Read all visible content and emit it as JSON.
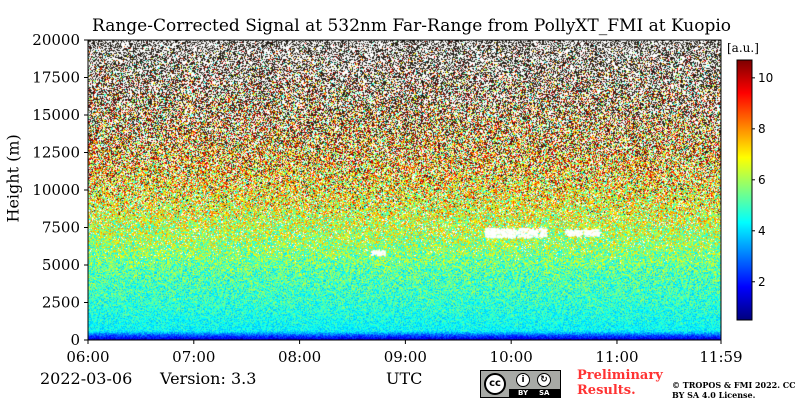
{
  "chart_data": {
    "type": "heatmap",
    "title": "Range-Corrected Signal at 532nm Far-Range from PollyXT_FMI at Kuopio",
    "ylabel": "Height (m)",
    "xlabel": "UTC",
    "x_range": [
      "06:00",
      "11:59"
    ],
    "ylim": [
      0,
      20000
    ],
    "y_ticks": [
      0,
      2500,
      5000,
      7500,
      10000,
      12500,
      15000,
      17500,
      20000
    ],
    "x_ticks": [
      "06:00",
      "07:00",
      "08:00",
      "09:00",
      "10:00",
      "11:00",
      "11:59"
    ],
    "colorbar": {
      "label": "[a.u.]",
      "ticks": [
        2,
        4,
        6,
        8,
        10
      ],
      "range": [
        0.5,
        10.7
      ],
      "colormap": "jet"
    },
    "profile": [
      {
        "height": 0,
        "value": 1.2
      },
      {
        "height": 300,
        "value": 2.6
      },
      {
        "height": 600,
        "value": 4.3
      },
      {
        "height": 2500,
        "value": 4.8
      },
      {
        "height": 4500,
        "value": 5.2
      },
      {
        "height": 6000,
        "value": 5.8
      },
      {
        "height": 8000,
        "value": 6.5
      },
      {
        "height": 12000,
        "value": 7.5
      },
      {
        "height": 20000,
        "value": 8.5
      }
    ],
    "cloud_features": [
      {
        "time_start": "08:40",
        "time_end": "08:48",
        "height_bottom": 5700,
        "height_top": 6000
      },
      {
        "time_start": "09:45",
        "time_end": "10:20",
        "height_bottom": 6900,
        "height_top": 7500
      },
      {
        "time_start": "10:30",
        "time_end": "10:50",
        "height_bottom": 7000,
        "height_top": 7400
      }
    ],
    "grid": false
  },
  "footer": {
    "date": "2022-03-06",
    "version": "Version: 3.3",
    "xlabel": "UTC",
    "license_badge": {
      "by": "BY",
      "sa": "SA"
    },
    "preliminary": "Preliminary Results.",
    "copyright": "© TROPOS & FMI 2022. CC BY SA 4.0 License."
  }
}
